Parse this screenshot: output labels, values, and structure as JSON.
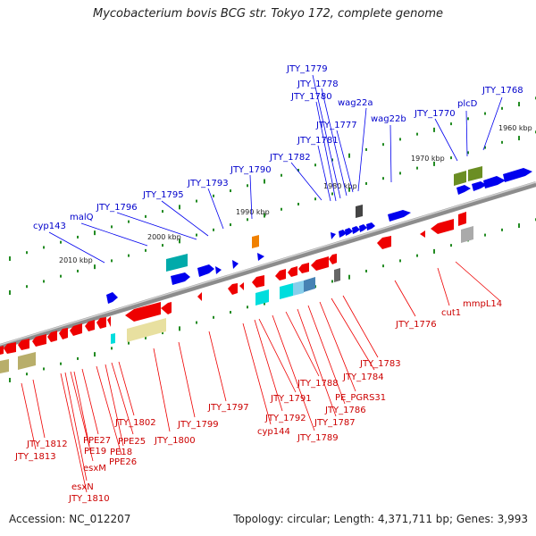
{
  "title": "Mycobacterium bovis BCG str. Tokyo 172, complete genome",
  "accession": "Accession: NC_012207",
  "topology": "Topology: circular; Length: 4,371,711 bp; Genes: 3,993",
  "colors": {
    "forward_gene": "#0000ee",
    "reverse_gene": "#ee0000",
    "backbone": "#888888",
    "tick": "#228b22",
    "forward_label": "#0000cc",
    "reverse_label": "#cc0000"
  },
  "scale_labels": [
    "1960 kbp",
    "1970 kbp",
    "1980 kbp",
    "1990 kbp",
    "2000 kbp",
    "2010 kbp"
  ],
  "forward_labels": [
    "JTY_1779",
    "JTY_1778",
    "JTY_1780",
    "wag22a",
    "JTY_1768",
    "plcD",
    "JTY_1777",
    "wag22b",
    "JTY_1770",
    "JTY_1781",
    "JTY_1782",
    "JTY_1790",
    "JTY_1793",
    "JTY_1795",
    "JTY_1796",
    "malQ",
    "cyp143"
  ],
  "reverse_labels": [
    "mmpL14",
    "cut1",
    "JTY_1776",
    "JTY_1783",
    "JTY_1784",
    "PE_PGRS31",
    "JTY_1786",
    "JTY_1787",
    "JTY_1788",
    "JTY_1789",
    "JTY_1791",
    "JTY_1792",
    "cyp144",
    "JTY_1797",
    "JTY_1799",
    "JTY_1800",
    "JTY_1802",
    "PPE25",
    "PPE27",
    "PE18",
    "PPE26",
    "PE19",
    "JTY_1812",
    "JTY_1813",
    "esxM",
    "esxN",
    "JTY_1810"
  ]
}
